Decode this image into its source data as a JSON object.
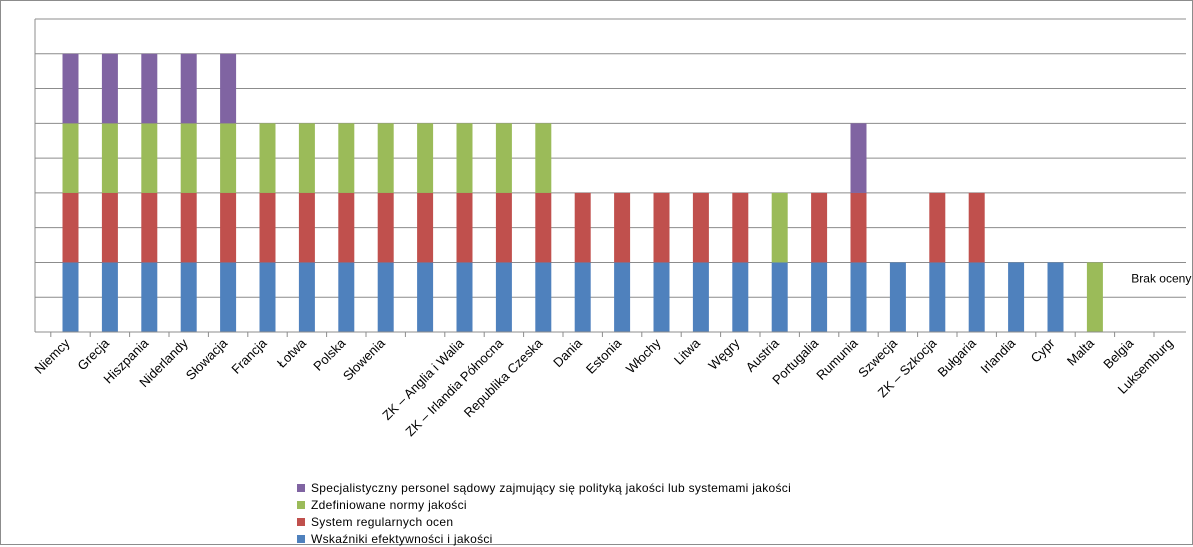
{
  "chart_data": {
    "type": "bar",
    "stacked": true,
    "categories": [
      "Niemcy",
      "Grecja",
      "Hiszpania",
      "Niderlandy",
      "Słowacja",
      "Francja",
      "Łotwa",
      "Polska",
      "Słowenia",
      "",
      "ZK – Anglia i Walia",
      "ZK – Irlandia Północna",
      "Republika Czeska",
      "Dania",
      "Estonia",
      "Włochy",
      "Litwa",
      "Węgry",
      "Austria",
      "Portugalia",
      "Rumunia",
      "Szwecja",
      "ZK – Szkocja",
      "Bułgaria",
      "Irlandia",
      "Cypr",
      "Malta",
      "Belgia",
      "Luksemburg"
    ],
    "series": [
      {
        "name": "Wskaźniki efektywności i jakości",
        "color": "#4f81bd",
        "values": [
          2,
          2,
          2,
          2,
          2,
          2,
          2,
          2,
          2,
          2,
          2,
          2,
          2,
          2,
          2,
          2,
          2,
          2,
          2,
          2,
          2,
          2,
          2,
          2,
          2,
          2,
          0,
          0,
          0
        ]
      },
      {
        "name": "System regularnych ocen",
        "color": "#c0504d",
        "values": [
          2,
          2,
          2,
          2,
          2,
          2,
          2,
          2,
          2,
          2,
          2,
          2,
          2,
          2,
          2,
          2,
          2,
          2,
          0,
          2,
          2,
          0,
          2,
          2,
          0,
          0,
          0,
          0,
          0
        ]
      },
      {
        "name": "Zdefiniowane normy jakości",
        "color": "#9bbb59",
        "values": [
          2,
          2,
          2,
          2,
          2,
          2,
          2,
          2,
          2,
          2,
          2,
          2,
          2,
          0,
          0,
          0,
          0,
          0,
          2,
          0,
          0,
          0,
          0,
          0,
          0,
          0,
          2,
          0,
          0
        ]
      },
      {
        "name": "Specjalistyczny personel sądowy zajmujący się polityką jakości lub systemami jakości",
        "color": "#8064a2",
        "values": [
          2,
          2,
          2,
          2,
          2,
          0,
          0,
          0,
          0,
          0,
          0,
          0,
          0,
          0,
          0,
          0,
          0,
          0,
          0,
          0,
          2,
          0,
          0,
          0,
          0,
          0,
          0,
          0,
          0
        ]
      }
    ],
    "ylim": [
      0,
      9
    ],
    "grid": true,
    "legend_position": "bottom",
    "annotations": [
      {
        "text": "Brak oceny",
        "category": "Belgia"
      }
    ]
  }
}
